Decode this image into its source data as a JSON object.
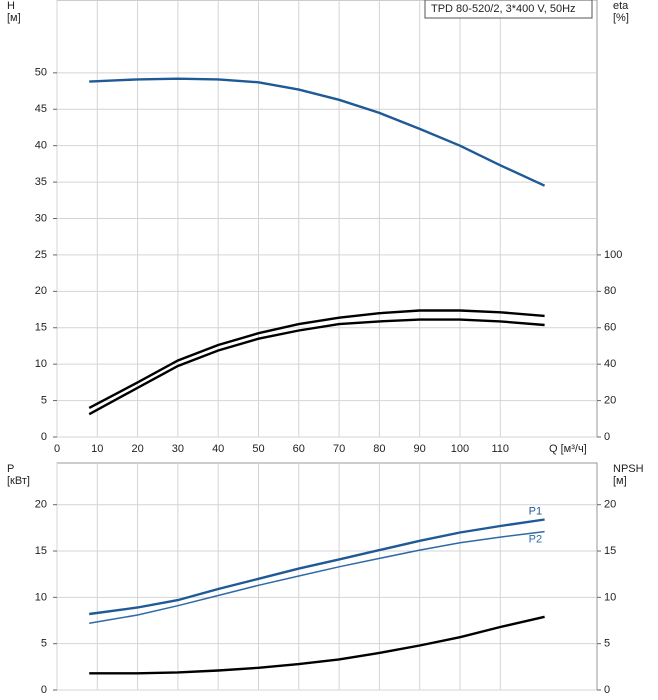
{
  "chart_data": [
    {
      "type": "line",
      "annotation": "TPD 80-520/2, 3*400 V, 50Hz",
      "ylabel": "H",
      "yunit": "[м]",
      "y2label": "eta",
      "y2unit": "[%]",
      "xlabel": "Q [м³/ч]",
      "x": [
        8,
        20,
        30,
        40,
        50,
        60,
        70,
        80,
        90,
        100,
        110,
        121
      ],
      "xlim": [
        0,
        134
      ],
      "xticks": [
        0,
        10,
        20,
        30,
        40,
        50,
        60,
        70,
        80,
        90,
        100,
        110
      ],
      "ylim": [
        0,
        60
      ],
      "yticks": [
        0,
        5,
        10,
        15,
        20,
        25,
        30,
        35,
        40,
        45,
        50
      ],
      "y2lim": [
        0,
        240
      ],
      "y2ticks": [
        0,
        20,
        40,
        60,
        80,
        100
      ],
      "grid": true,
      "series": [
        {
          "color": "#1f5a96",
          "values": [
            48.8,
            49.1,
            49.2,
            49.1,
            48.7,
            47.7,
            46.3,
            44.5,
            42.3,
            40,
            37.3,
            34.5
          ]
        },
        {
          "color": "#000000",
          "axis": "y2",
          "values": [
            16,
            30,
            42,
            50.5,
            57,
            62,
            65.5,
            68,
            69.5,
            69.5,
            68.5,
            66.5
          ]
        },
        {
          "color": "#000000",
          "axis": "y2",
          "values": [
            12.5,
            27,
            39,
            47.5,
            54,
            58.5,
            62,
            63.5,
            64.5,
            64.5,
            63.5,
            61.5
          ]
        }
      ]
    },
    {
      "type": "line",
      "ylabel": "P",
      "yunit": "[кВт]",
      "y2label": "NPSH",
      "y2unit": "[м]",
      "x": [
        8,
        20,
        30,
        40,
        50,
        60,
        70,
        80,
        90,
        100,
        110,
        121
      ],
      "xlim": [
        0,
        134
      ],
      "ylim": [
        0,
        24.5
      ],
      "yticks": [
        0,
        5,
        10,
        15,
        20
      ],
      "y2lim": [
        0,
        24.5
      ],
      "y2ticks": [
        0,
        5,
        10,
        15,
        20
      ],
      "grid": true,
      "series": [
        {
          "name": "P1",
          "color": "#1f5a96",
          "values": [
            8.2,
            8.9,
            9.7,
            10.9,
            12,
            13.1,
            14.1,
            15.1,
            16.1,
            17,
            17.7,
            18.4
          ]
        },
        {
          "name": "P2",
          "color": "#2f6aa6",
          "values": [
            7.2,
            8.1,
            9.1,
            10.2,
            11.3,
            12.3,
            13.3,
            14.2,
            15.1,
            15.9,
            16.5,
            17.1
          ]
        },
        {
          "color": "#000000",
          "axis": "y2",
          "values": [
            1.8,
            1.8,
            1.9,
            2.1,
            2.4,
            2.8,
            3.3,
            4,
            4.8,
            5.7,
            6.8,
            7.9
          ]
        }
      ]
    }
  ]
}
